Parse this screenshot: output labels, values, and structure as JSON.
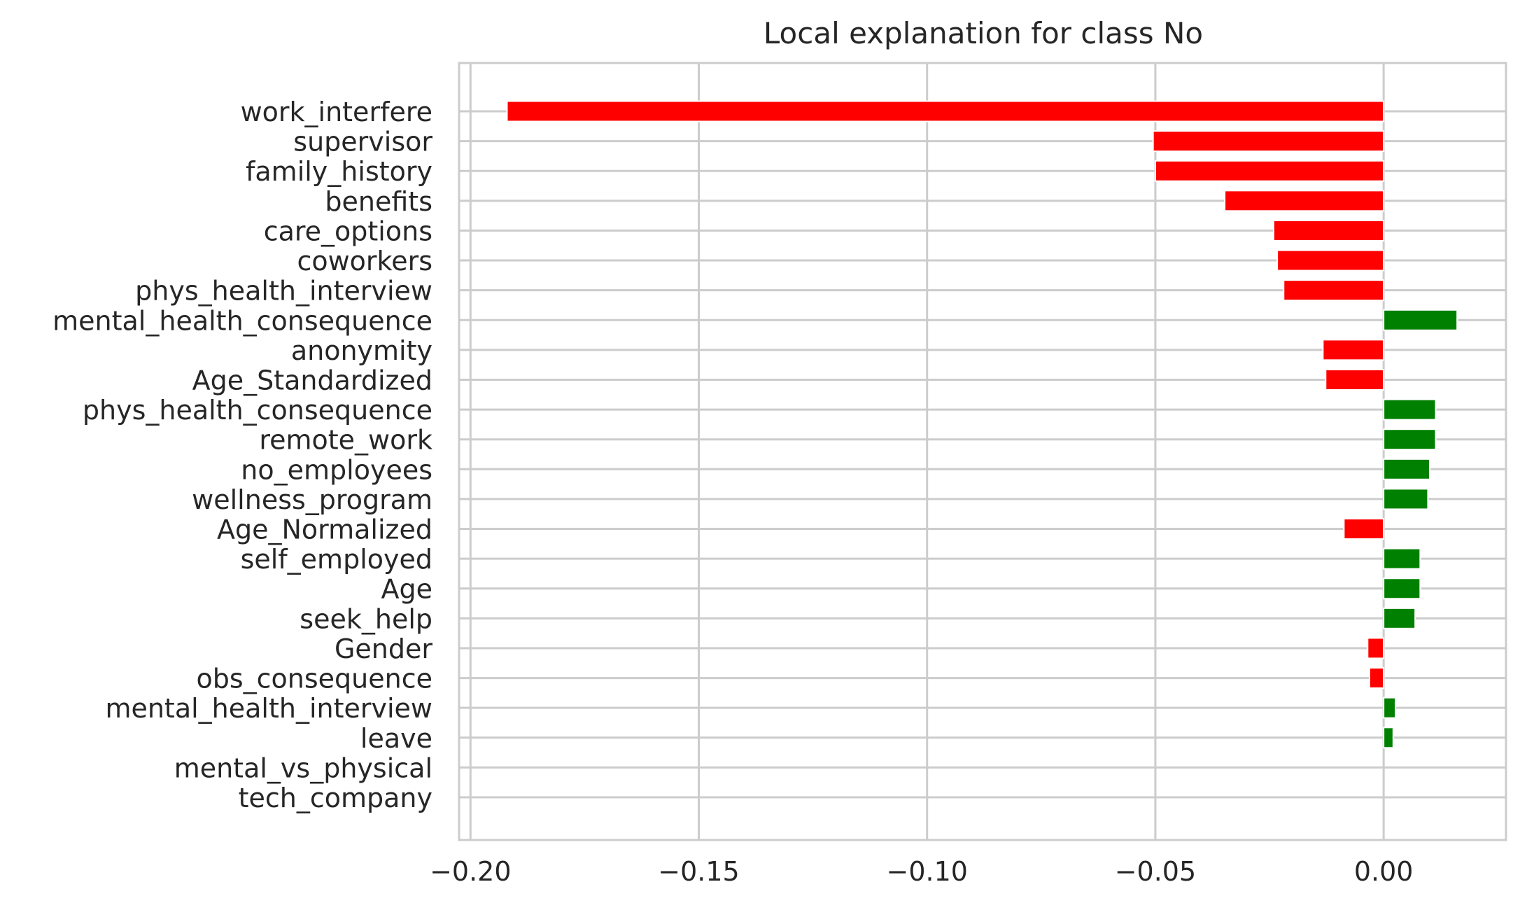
{
  "chart_data": {
    "type": "bar",
    "orientation": "horizontal",
    "title": "Local explanation for class No",
    "xlabel": "",
    "ylabel": "",
    "xlim": [
      -0.2025,
      0.0268
    ],
    "grid": true,
    "x_ticks": [
      -0.2,
      -0.15,
      -0.1,
      -0.05,
      0.0
    ],
    "x_tick_labels": [
      "−0.20",
      "−0.15",
      "−0.10",
      "−0.05",
      "0.00"
    ],
    "categories": [
      "work_interfere",
      "supervisor",
      "family_history",
      "benefits",
      "care_options",
      "coworkers",
      "phys_health_interview",
      "mental_health_consequence",
      "anonymity",
      "Age_Standardized",
      "phys_health_consequence",
      "remote_work",
      "no_employees",
      "wellness_program",
      "Age_Normalized",
      "self_employed",
      "Age",
      "seek_help",
      "Gender",
      "obs_consequence",
      "mental_health_interview",
      "leave",
      "mental_vs_physical",
      "tech_company"
    ],
    "values": [
      -0.192,
      -0.0505,
      -0.05,
      -0.0348,
      -0.0241,
      -0.0233,
      -0.0219,
      0.0161,
      -0.0133,
      -0.0127,
      0.0114,
      0.0114,
      0.0101,
      0.0097,
      -0.0087,
      0.008,
      0.008,
      0.0069,
      -0.0035,
      -0.0031,
      0.0026,
      0.0021,
      0.0,
      0.0
    ],
    "colors": {
      "positive": "#008000",
      "negative": "#ff0000",
      "grid": "#cccccc",
      "axes": "#cccccc",
      "text": "#262626",
      "background": "#ffffff"
    }
  }
}
